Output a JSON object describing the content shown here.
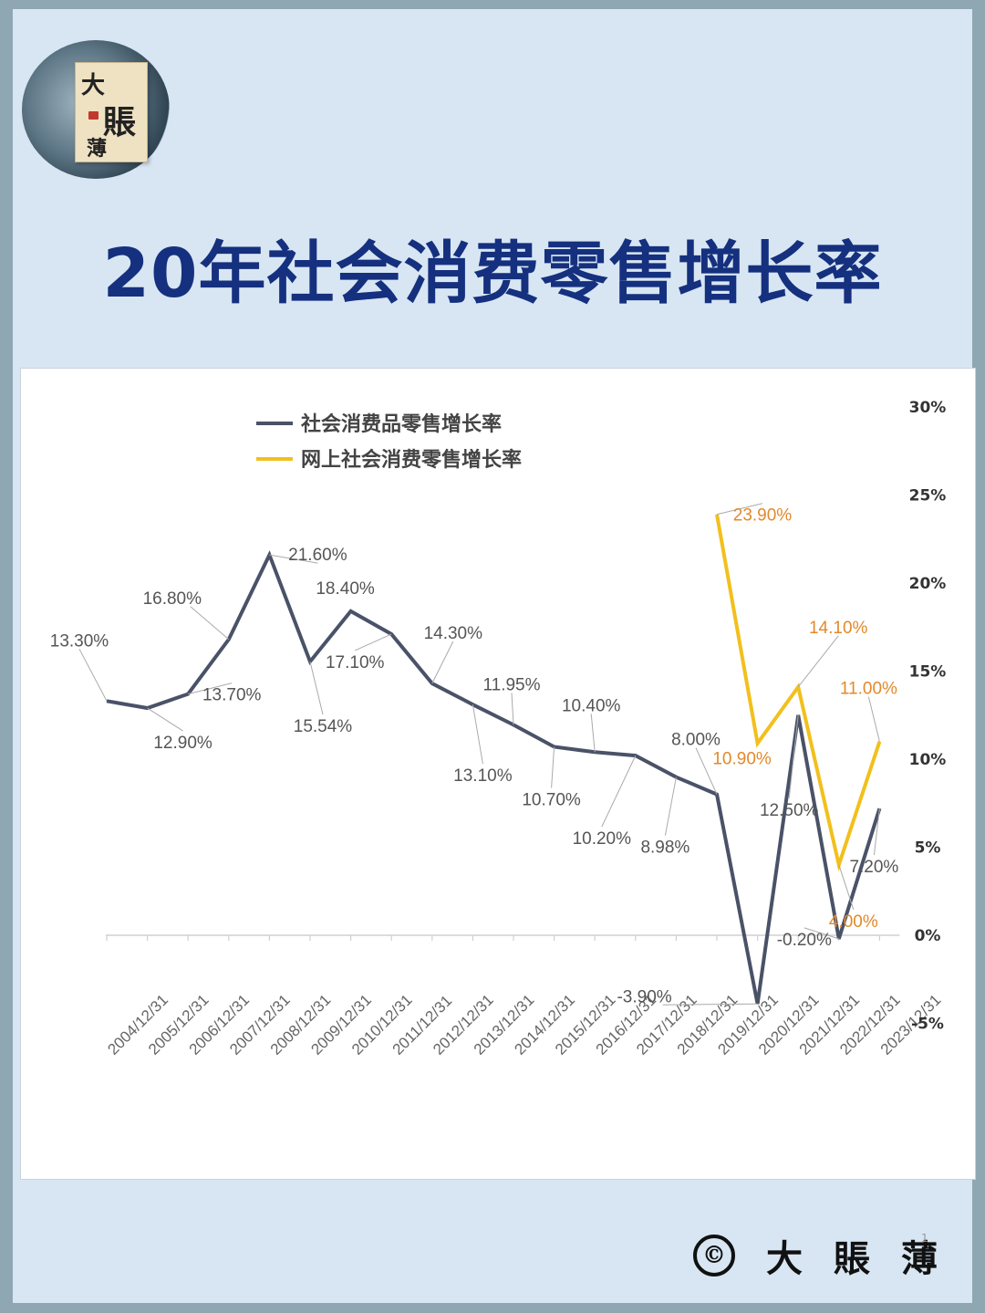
{
  "title": "20年社会消费零售增长率",
  "logo": {
    "chars": [
      "大",
      "賬",
      "薄"
    ]
  },
  "footer": {
    "copyright_symbol": "©",
    "brand": "大賬薄",
    "page_number": "1"
  },
  "colors": {
    "main_series": "#4a5268",
    "online_series": "#f2c01d",
    "online_label": "#e2892a",
    "title": "#15307e"
  },
  "chart_data": {
    "type": "line",
    "categories": [
      "2004/12/31",
      "2005/12/31",
      "2006/12/31",
      "2007/12/31",
      "2008/12/31",
      "2009/12/31",
      "2010/12/31",
      "2011/12/31",
      "2012/12/31",
      "2013/12/31",
      "2014/12/31",
      "2015/12/31",
      "2016/12/31",
      "2017/12/31",
      "2018/12/31",
      "2019/12/31",
      "2020/12/31",
      "2021/12/31",
      "2022/12/31",
      "2023/12/31"
    ],
    "series": [
      {
        "name": "社会消费品零售增长率",
        "values": [
          13.3,
          12.9,
          13.7,
          16.8,
          21.6,
          15.54,
          18.4,
          17.1,
          14.3,
          13.1,
          11.95,
          10.7,
          10.4,
          10.2,
          8.98,
          8.0,
          -3.9,
          12.5,
          -0.2,
          7.2
        ],
        "labels": [
          "13.30%",
          "12.90%",
          "13.70%",
          "16.80%",
          "21.60%",
          "15.54%",
          "18.40%",
          "17.10%",
          "14.30%",
          "13.10%",
          "11.95%",
          "10.70%",
          "10.40%",
          "10.20%",
          "8.98%",
          "8.00%",
          "-3.90%",
          "12.50%",
          "-0.20%",
          "7.20%"
        ]
      },
      {
        "name": "网上社会消费零售增长率",
        "values": [
          null,
          null,
          null,
          null,
          null,
          null,
          null,
          null,
          null,
          null,
          null,
          null,
          null,
          null,
          null,
          23.9,
          10.9,
          14.1,
          4.0,
          11.0
        ],
        "labels": [
          null,
          null,
          null,
          null,
          null,
          null,
          null,
          null,
          null,
          null,
          null,
          null,
          null,
          null,
          null,
          "23.90%",
          "10.90%",
          "14.10%",
          "4.00%",
          "11.00%"
        ]
      }
    ],
    "y_ticks": [
      "30%",
      "25%",
      "20%",
      "15%",
      "10%",
      "5%",
      "0%",
      "-5%"
    ],
    "ylim": [
      -5,
      30
    ],
    "y_axis_side": "right",
    "grid": false,
    "legend_position": "top-left"
  }
}
